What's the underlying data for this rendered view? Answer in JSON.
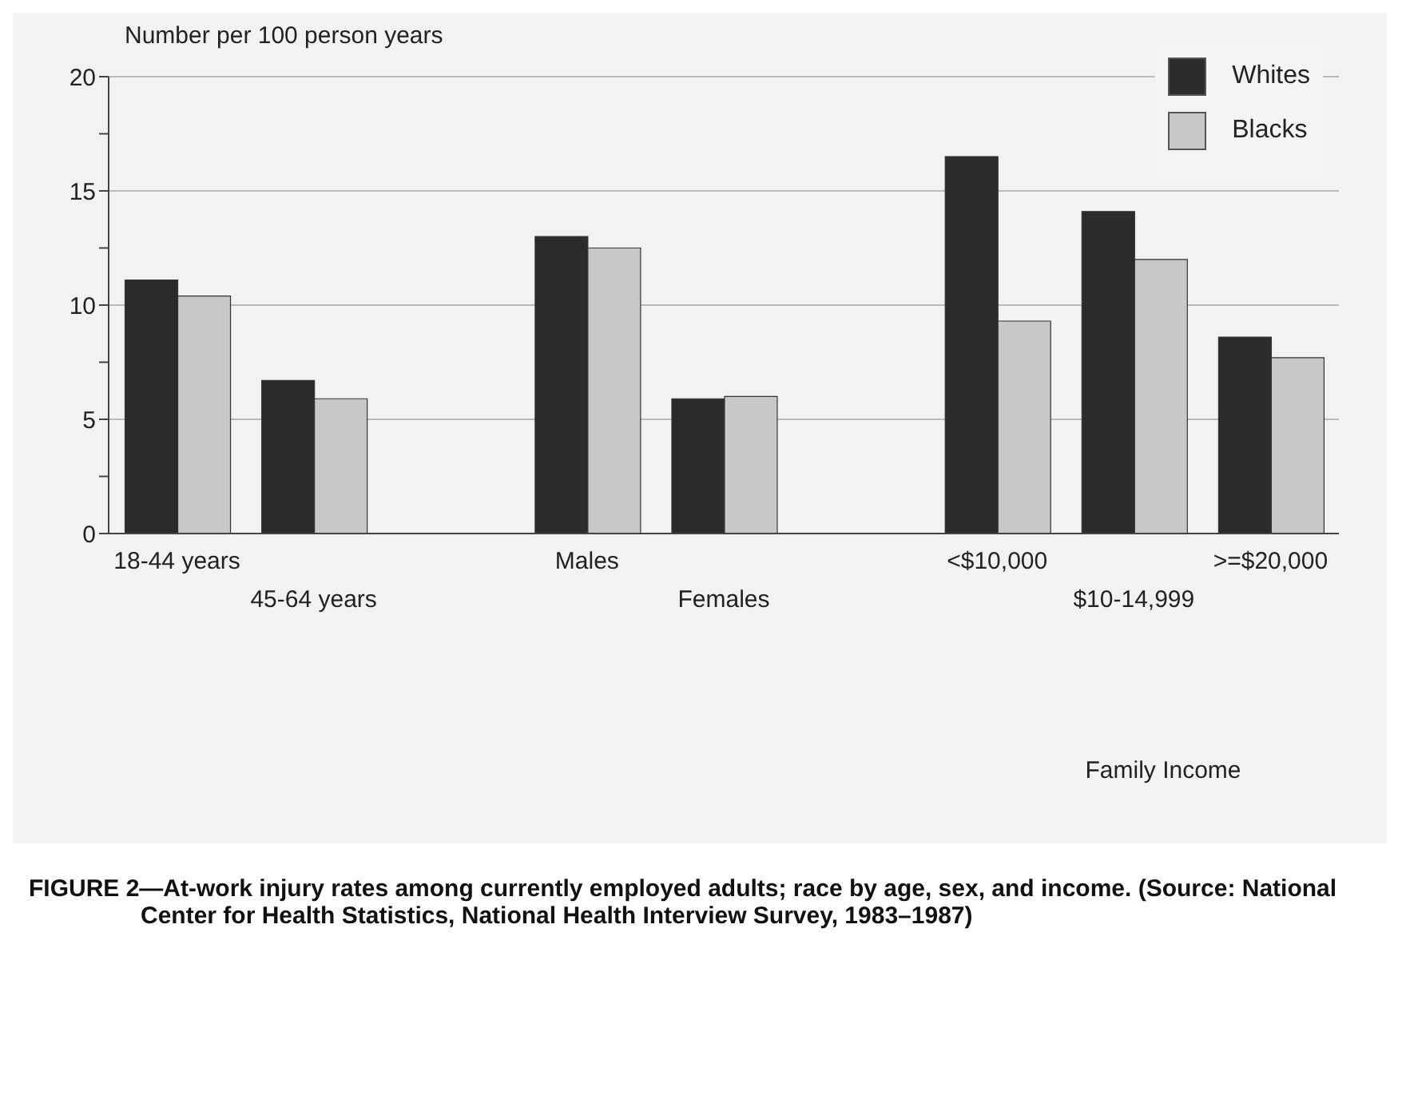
{
  "chart_data": {
    "type": "bar",
    "title": "FIGURE 2—At-work injury rates among currently employed adults; race by age, sex, and income. (Source: National Center for Health Statistics, National Health Interview Survey, 1983–1987)",
    "ylabel": "Number per 100 person years",
    "categories": [
      "18-44 years",
      "45-64 years",
      null,
      "Males",
      "Females",
      null,
      "<$10,000",
      "$10-14,999",
      ">=$20,000"
    ],
    "series": [
      {
        "name": "Whites",
        "color": "#2b2b2b",
        "values": [
          11.1,
          6.7,
          null,
          13.0,
          5.9,
          null,
          16.5,
          14.1,
          8.6
        ]
      },
      {
        "name": "Blacks",
        "color": "#c8c8c8",
        "values": [
          10.4,
          5.9,
          null,
          12.5,
          6.0,
          null,
          9.3,
          12.0,
          7.7
        ]
      }
    ],
    "annotations": [
      "Family Income"
    ],
    "ylim": [
      0,
      20
    ],
    "yticks": [
      0,
      {
        "value": 2.5,
        "label": null
      },
      5,
      {
        "value": 7.5,
        "label": null
      },
      10,
      {
        "value": 12.5,
        "label": null
      },
      15,
      {
        "value": 17.5,
        "label": null
      },
      20
    ],
    "grid": "y",
    "legend": "top right"
  }
}
